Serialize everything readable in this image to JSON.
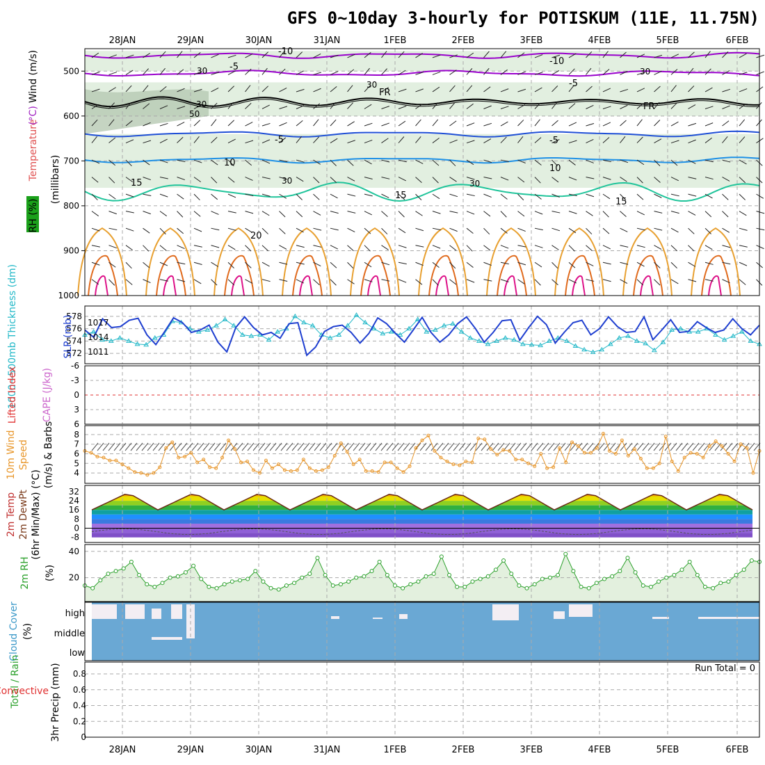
{
  "title": "GFS 0~10day 3-hourly for POTISKUM (11E, 11.75N)",
  "dates": [
    "28JAN",
    "29JAN",
    "30JAN",
    "31JAN",
    "1FEB",
    "2FEB",
    "3FEB",
    "4FEB",
    "5FEB",
    "6FEB"
  ],
  "run_total": "Run Total = 0",
  "colors": {
    "purple": "#9900cc",
    "blue": "#1f4fd6",
    "cyan_blue": "#1e90e6",
    "teal": "#1fc49a",
    "orange": "#e8a030",
    "magenta": "#dd1188",
    "slp": "#1f3fd0",
    "thickness": "#22b8c8",
    "wind": "#e8962a",
    "rh": "#2aa02a",
    "cloud": "#6aa8d4",
    "cape": "#cc66cc",
    "lifted": "#e03030"
  },
  "chart_data": [
    {
      "type": "contour",
      "ylabel_parts": [
        "RH (%)",
        "Temperature",
        "(°C)",
        "Wind (m/s)"
      ],
      "yunit": "(millibars)",
      "yticks": [
        500,
        600,
        700,
        800,
        900,
        1000
      ],
      "temperature_labels": [
        "-10",
        "-5",
        "FR",
        "-5",
        "10",
        "15",
        "20"
      ],
      "temperature_labels_right": [
        "-10",
        "-5",
        "FR",
        "-5",
        "10",
        "15"
      ],
      "rh_labels": [
        "30",
        "30",
        "50",
        "30",
        "30",
        "30",
        "30"
      ]
    },
    {
      "type": "line",
      "ylabel_left": "1000~500mb Thickness (dm)",
      "ylabel_right": "SLP (mb)",
      "yticks_left": [
        578,
        576,
        574,
        572
      ],
      "yticks_right": [
        1017,
        1014,
        1011
      ],
      "series": [
        {
          "name": "SLP",
          "values": [
            1015.5,
            1014.0,
            1017.8,
            1016.0,
            1016.2,
            1017.5,
            1017.9,
            1014.5,
            1012.5,
            1015.2,
            1018.0,
            1017.0,
            1015.0,
            1015.5,
            1016.5,
            1013.0,
            1011.0,
            1016.0,
            1018.2,
            1016.0,
            1014.5,
            1015.0,
            1013.8,
            1016.8,
            1017.0,
            1010.3,
            1012.0,
            1015.2,
            1016.2,
            1016.5,
            1015.0,
            1012.8,
            1014.8,
            1018.0,
            1016.8,
            1014.8,
            1013.0,
            1015.5,
            1018.1,
            1015.0,
            1013.0,
            1014.5,
            1016.8,
            1018.2,
            1015.8,
            1013.0,
            1015.0,
            1017.4,
            1017.6,
            1013.4,
            1016.0,
            1018.3,
            1016.6,
            1012.8,
            1015.0,
            1017.0,
            1017.5,
            1014.5,
            1015.8,
            1018.2,
            1016.2,
            1015.0,
            1015.2,
            1018.2,
            1013.5,
            1015.5,
            1017.6,
            1015.0,
            1015.2,
            1017.2,
            1016.0,
            1015.0,
            1015.5,
            1017.8,
            1015.8,
            1014.5,
            1016.5
          ]
        },
        {
          "name": "Thickness",
          "values": [
            575.0,
            575.5,
            574.2,
            574.0,
            574.5,
            574.0,
            573.5,
            573.4,
            574.5,
            575.0,
            577.2,
            577.0,
            576.0,
            575.5,
            575.8,
            576.5,
            577.5,
            576.5,
            575.0,
            574.8,
            575.0,
            574.2,
            575.5,
            576.0,
            578.0,
            577.0,
            576.5,
            575.0,
            574.5,
            575.0,
            576.5,
            578.2,
            577.0,
            576.0,
            575.2,
            575.5,
            575.0,
            576.0,
            577.5,
            575.5,
            575.8,
            576.5,
            576.8,
            575.5,
            574.5,
            574.0,
            573.5,
            574.0,
            574.5,
            574.2,
            573.5,
            573.4,
            573.3,
            574.0,
            574.5,
            574.0,
            573.2,
            572.6,
            572.2,
            572.6,
            573.5,
            574.5,
            574.8,
            574.0,
            573.6,
            572.5,
            573.8,
            575.8,
            576.0,
            575.5,
            575.5,
            576.0,
            575.0,
            574.2,
            574.8,
            575.5,
            574.0,
            573.5
          ]
        }
      ]
    },
    {
      "type": "line",
      "ylabel_left": "Lifted Index",
      "ylabel_right": "CAPE (J/kg)",
      "yticks": [
        -6,
        -3,
        0,
        3,
        6
      ]
    },
    {
      "type": "line",
      "ylabel_parts": [
        "10m Wind",
        "Speed",
        "(m/s) & Barbs"
      ],
      "yticks": [
        8,
        7,
        6,
        5,
        4
      ],
      "series": [
        {
          "name": "Wind Speed",
          "values": [
            6.3,
            6.1,
            5.7,
            5.6,
            5.3,
            5.3,
            4.9,
            4.5,
            4.1,
            4.0,
            3.8,
            4.0,
            4.6,
            6.6,
            7.2,
            5.6,
            5.7,
            6.1,
            5.1,
            5.4,
            4.6,
            4.5,
            5.6,
            7.4,
            6.5,
            5.1,
            5.2,
            4.3,
            4.0,
            5.3,
            4.5,
            4.9,
            4.3,
            4.2,
            4.3,
            5.4,
            4.5,
            4.2,
            4.3,
            4.6,
            5.8,
            7.1,
            6.2,
            4.9,
            5.4,
            4.2,
            4.2,
            4.1,
            5.1,
            5.1,
            4.5,
            4.1,
            4.7,
            6.6,
            7.4,
            7.9,
            6.3,
            5.6,
            5.2,
            4.9,
            4.8,
            5.2,
            5.1,
            7.6,
            7.5,
            6.5,
            5.9,
            6.4,
            6.3,
            5.4,
            5.4,
            5.0,
            4.7,
            6.0,
            4.5,
            4.6,
            6.6,
            5.1,
            7.2,
            6.8,
            6.1,
            6.1,
            6.6,
            8.1,
            6.3,
            6.0,
            7.4,
            5.8,
            6.5,
            5.5,
            4.5,
            4.5,
            5.0,
            7.8,
            5.2,
            4.2,
            5.6,
            6.1,
            6.0,
            5.6,
            6.8,
            7.3,
            6.8,
            6.0,
            5.2,
            7.0,
            6.6,
            4.0,
            6.3
          ]
        }
      ]
    },
    {
      "type": "area",
      "ylabel_parts": [
        "2m Temp",
        "2m DewPt",
        "(6hr Min/Max) (°C)"
      ],
      "yticks": [
        32,
        24,
        16,
        8,
        0,
        -8
      ]
    },
    {
      "type": "area",
      "ylabel_parts": [
        "2m RH",
        "(%)"
      ],
      "yticks": [
        40,
        20
      ],
      "series": [
        {
          "name": "2m RH",
          "values": [
            14,
            12,
            18,
            23,
            25,
            27,
            32,
            22,
            15,
            13,
            16,
            20,
            21,
            24,
            29,
            19,
            13,
            12,
            15,
            17,
            18,
            19,
            25,
            17,
            12,
            11,
            14,
            16,
            20,
            23,
            35,
            22,
            14,
            15,
            17,
            20,
            21,
            25,
            32,
            22,
            14,
            12,
            15,
            17,
            21,
            23,
            36,
            22,
            13,
            13,
            17,
            19,
            21,
            26,
            33,
            23,
            14,
            12,
            15,
            19,
            20,
            22,
            38,
            25,
            13,
            12,
            16,
            19,
            21,
            25,
            35,
            24,
            14,
            13,
            17,
            20,
            22,
            26,
            32,
            22,
            13,
            12,
            16,
            17,
            22,
            26,
            33,
            32
          ]
        }
      ]
    },
    {
      "type": "heatmap",
      "ylabel_parts": [
        "Cloud Cover",
        "(%)"
      ],
      "levels": [
        "high",
        "middle",
        "low"
      ]
    },
    {
      "type": "bar",
      "ylabel_parts": [
        "Total / Rain",
        "Convective",
        "3hr Precip (mm)"
      ],
      "yticks": [
        "0.8",
        "0.6",
        "0.4",
        "0.2",
        "0"
      ],
      "values": []
    }
  ]
}
